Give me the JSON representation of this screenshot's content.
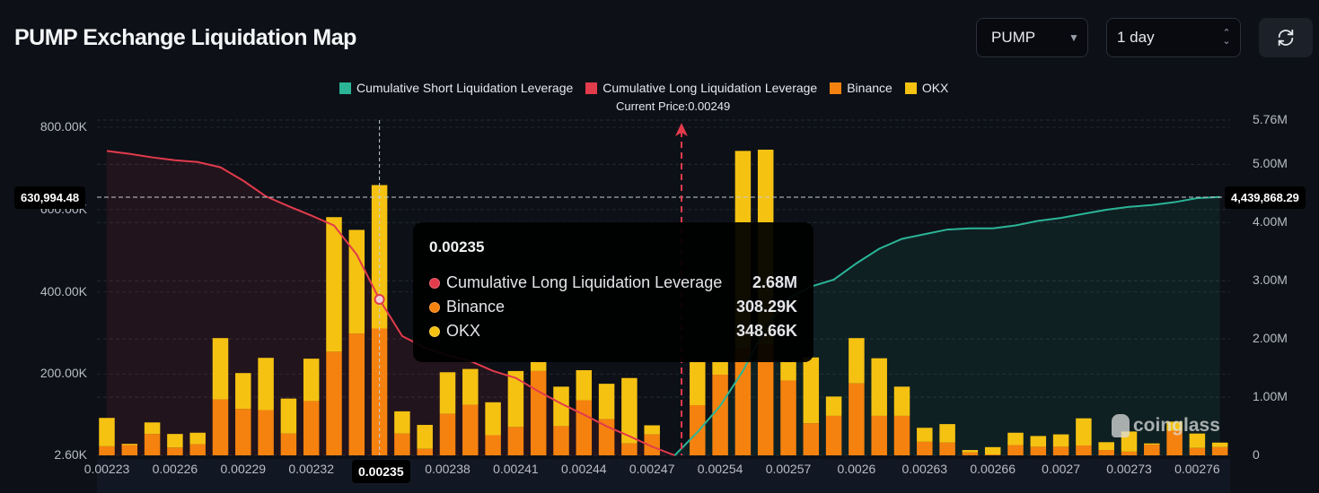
{
  "header": {
    "title": "PUMP Exchange Liquidation Map",
    "symbol_select": "PUMP",
    "range_select": "1 day",
    "refresh_icon": "refresh-icon"
  },
  "colors": {
    "short": "#2bb596",
    "long": "#e23b4c",
    "binance": "#f5820f",
    "okx": "#f5c212",
    "background": "#0d1017"
  },
  "watermark": "coinglass",
  "chart_data": {
    "type": "bar",
    "stacked": true,
    "legend": [
      "Cumulative Short Liquidation Leverage",
      "Cumulative Long Liquidation Leverage",
      "Binance",
      "OKX"
    ],
    "legend_placement": "top",
    "current_price_label": "Current Price:0.00249",
    "x_tick_labels": [
      "0.00223",
      "0.00226",
      "0.00229",
      "0.00232",
      "0.00235",
      "0.00238",
      "0.00241",
      "0.00244",
      "0.00247",
      "0.00254",
      "0.00257",
      "0.0026",
      "0.00263",
      "0.00266",
      "0.0027",
      "0.00273",
      "0.00276"
    ],
    "left_axis": {
      "ticks": [
        "2.60K",
        "200.00K",
        "400.00K",
        "600.00K",
        "800.00K"
      ],
      "tick_values_k": [
        2.6,
        200,
        400,
        600,
        800
      ],
      "range_k": [
        2.6,
        800
      ]
    },
    "right_axis": {
      "ticks": [
        "0",
        "1.00M",
        "2.00M",
        "3.00M",
        "4.00M",
        "5.00M",
        "5.76M"
      ],
      "tick_values_m": [
        0,
        1,
        2,
        3,
        4,
        5,
        5.76
      ],
      "range_m": [
        0,
        5.76
      ]
    },
    "binance_k": [
      22,
      25,
      52,
      19,
      27,
      136,
      113,
      110,
      53,
      132,
      252,
      296,
      308.29,
      53,
      16,
      101,
      123,
      49,
      69,
      205,
      71,
      134,
      88,
      29,
      51,
      0,
      122,
      196,
      260,
      270,
      182,
      78,
      96,
      175,
      96,
      96,
      33,
      31,
      7,
      2,
      25,
      21,
      21,
      24,
      13,
      9,
      26,
      60,
      18,
      20
    ],
    "okx_k": [
      69,
      3,
      28,
      33,
      28,
      149,
      87,
      127,
      85,
      103,
      327,
      252,
      348.66,
      54,
      58,
      101,
      87,
      80,
      136,
      22,
      96,
      73,
      86,
      159,
      22,
      0,
      105,
      31,
      480,
      473,
      45,
      160,
      47,
      110,
      140,
      71,
      34,
      45,
      6,
      18,
      30,
      26,
      30,
      66,
      19,
      49,
      3,
      22,
      35,
      11
    ],
    "cumulative_long_m": [
      5.23,
      5.18,
      5.12,
      5.07,
      5.04,
      4.95,
      4.72,
      4.45,
      4.28,
      4.12,
      3.95,
      3.45,
      2.68,
      2.05,
      1.85,
      1.72,
      1.62,
      1.45,
      1.33,
      1.1,
      0.89,
      0.7,
      0.5,
      0.33,
      0.15,
      0
    ],
    "cumulative_short_m": [
      0,
      0.4,
      0.85,
      1.45,
      2.2,
      2.7,
      2.9,
      3.02,
      3.3,
      3.55,
      3.72,
      3.8,
      3.88,
      3.9,
      3.9,
      3.95,
      4.03,
      4.08,
      4.15,
      4.22,
      4.27,
      4.3,
      4.35,
      4.42,
      4.44
    ],
    "crosshair": {
      "x_label": "0.00235",
      "left_value": "630,994.48",
      "right_value": "4,439,868.29"
    },
    "tooltip": {
      "title": "0.00235",
      "rows": [
        {
          "name": "Cumulative Long Liquidation Leverage",
          "value": "2.68M"
        },
        {
          "name": "Binance",
          "value": "308.29K"
        },
        {
          "name": "OKX",
          "value": "348.66K"
        }
      ]
    }
  }
}
